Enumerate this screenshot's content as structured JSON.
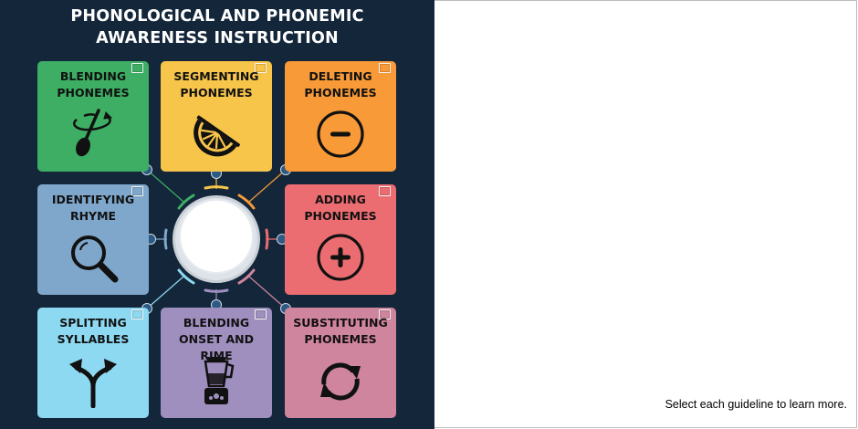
{
  "title_line1": "PHONOLOGICAL AND PHONEMIC",
  "title_line2": "AWARENESS INSTRUCTION",
  "cards": [
    {
      "line1": "BLENDING",
      "line2": "PHONEMES",
      "icon": "spoon-stir-icon",
      "color": "#3dae63"
    },
    {
      "line1": "SEGMENTING",
      "line2": "PHONEMES",
      "icon": "orange-slice-icon",
      "color": "#f7c54a"
    },
    {
      "line1": "DELETING",
      "line2": "PHONEMES",
      "icon": "minus-circle-icon",
      "color": "#f79a37"
    },
    {
      "line1": "IDENTIFYING",
      "line2": "RHYME",
      "icon": "magnifier-icon",
      "color": "#7ea7cb"
    },
    {
      "line1": "ADDING",
      "line2": "PHONEMES",
      "icon": "plus-circle-icon",
      "color": "#ec6d71"
    },
    {
      "line1": "SPLITTING",
      "line2": "SYLLABLES",
      "icon": "split-arrow-icon",
      "color": "#8ed9f2"
    },
    {
      "line1": "BLENDING",
      "line2": "ONSET AND RIME",
      "icon": "blender-icon",
      "color": "#9f8fbf"
    },
    {
      "line1": "SUBSTITUTING",
      "line2": "PHONEMES",
      "icon": "refresh-arrows-icon",
      "color": "#d0859e"
    }
  ],
  "instruction": "Select each guideline to learn more."
}
